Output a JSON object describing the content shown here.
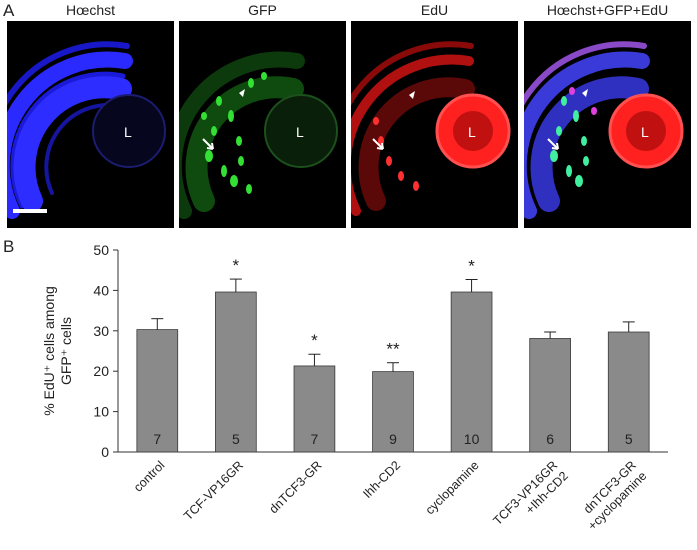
{
  "panel_a": {
    "letter": "A",
    "panels": [
      {
        "title": "Hœchst",
        "lens_label": "L",
        "channel": "blue"
      },
      {
        "title": "GFP",
        "lens_label": "L",
        "channel": "green"
      },
      {
        "title": "EdU",
        "lens_label": "L",
        "channel": "red"
      },
      {
        "title": "Hœchst+GFP+EdU",
        "lens_label": "L",
        "channel": "merge"
      }
    ]
  },
  "panel_b": {
    "letter": "B"
  },
  "chart_data": {
    "type": "bar",
    "title": "",
    "ylabel_lines": [
      "% EdU⁺ cells among",
      "GFP⁺ cells"
    ],
    "xlabel": "",
    "ylim": [
      0,
      50
    ],
    "yticks": [
      0,
      10,
      20,
      30,
      40,
      50
    ],
    "grid": false,
    "categories": [
      [
        "control"
      ],
      [
        "TCF-VP16GR"
      ],
      [
        "dnTCF3-GR"
      ],
      [
        "Ihh-CD2"
      ],
      [
        "cyclopamine"
      ],
      [
        "TCF3-VP16GR",
        "+Ihh-CD2"
      ],
      [
        "dnTCF3-GR",
        "+cyclopamine"
      ]
    ],
    "values": [
      30.3,
      39.6,
      21.3,
      19.9,
      39.6,
      28.1,
      29.7
    ],
    "errors": [
      2.7,
      3.2,
      2.9,
      2.2,
      3.1,
      1.6,
      2.5
    ],
    "n_labels": [
      "7",
      "5",
      "7",
      "9",
      "10",
      "6",
      "5"
    ],
    "significance": [
      "",
      "*",
      "*",
      "**",
      "*",
      "",
      ""
    ],
    "colors": {
      "bar": "#8a8a8a",
      "bar_edge": "#3a3a3a",
      "axis": "#333333"
    }
  }
}
